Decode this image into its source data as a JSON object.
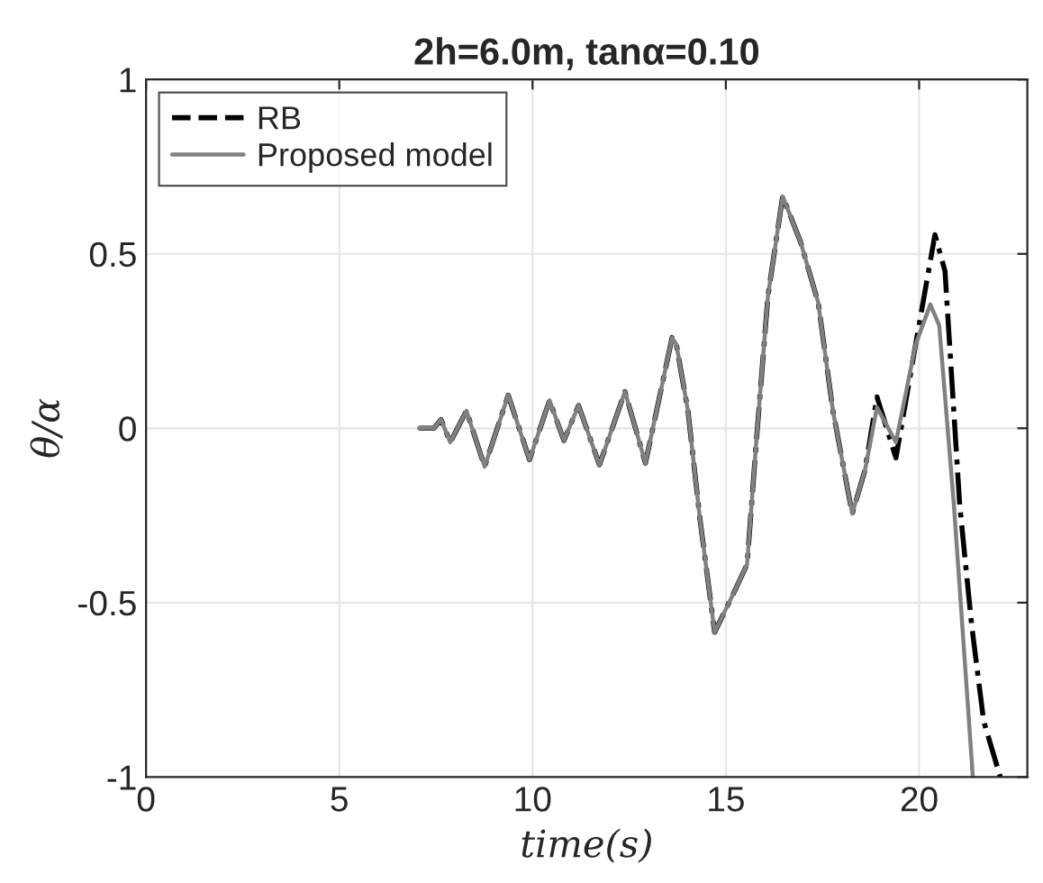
{
  "chart_data": {
    "type": "line",
    "title": "2h=6.0m, tanα=0.10",
    "xlabel": "time(s)",
    "ylabel": "θ/α",
    "xlim": [
      0,
      22.8
    ],
    "ylim": [
      -1,
      1
    ],
    "xticks": [
      0,
      5,
      10,
      15,
      20
    ],
    "yticks": [
      -1,
      -0.5,
      0,
      0.5,
      1
    ],
    "grid": true,
    "legend": "top left",
    "series": [
      {
        "name": "RB",
        "color": "#000000",
        "line_style": "dashed",
        "x": [
          7.06,
          7.45,
          7.63,
          7.87,
          8.29,
          8.76,
          9.37,
          9.92,
          10.44,
          10.81,
          11.19,
          11.73,
          12.39,
          12.92,
          13.61,
          13.72,
          14.02,
          14.33,
          14.71,
          15.17,
          15.55,
          15.78,
          16.09,
          16.47,
          16.93,
          17.39,
          17.77,
          18.27,
          18.6,
          18.91,
          19.4,
          19.91,
          20.41,
          20.67,
          21.05,
          21.36,
          21.67,
          22.1
        ],
        "values": [
          0,
          0,
          0.025,
          -0.04,
          0.05,
          -0.11,
          0.095,
          -0.09,
          0.08,
          -0.035,
          0.065,
          -0.105,
          0.105,
          -0.1,
          0.26,
          0.24,
          0.05,
          -0.26,
          -0.585,
          -0.48,
          -0.39,
          -0.05,
          0.38,
          0.665,
          0.535,
          0.36,
          0.05,
          -0.245,
          -0.12,
          0.09,
          -0.085,
          0.24,
          0.555,
          0.45,
          -0.22,
          -0.565,
          -0.84,
          -1
        ]
      },
      {
        "name": "Proposed model",
        "color": "#808080",
        "line_style": "solid",
        "x": [
          7.06,
          7.45,
          7.63,
          7.87,
          8.29,
          8.76,
          9.37,
          9.92,
          10.44,
          10.81,
          11.19,
          11.73,
          12.39,
          12.92,
          13.61,
          13.72,
          14.02,
          14.33,
          14.71,
          15.17,
          15.55,
          15.78,
          16.09,
          16.47,
          16.93,
          17.39,
          17.77,
          18.27,
          18.6,
          18.91,
          19.4,
          19.91,
          20.29,
          20.52,
          20.9,
          21.39
        ],
        "values": [
          0,
          0,
          0.025,
          -0.04,
          0.05,
          -0.11,
          0.095,
          -0.09,
          0.08,
          -0.035,
          0.065,
          -0.105,
          0.105,
          -0.1,
          0.26,
          0.24,
          0.05,
          -0.26,
          -0.585,
          -0.48,
          -0.39,
          -0.05,
          0.38,
          0.665,
          0.535,
          0.36,
          0.05,
          -0.245,
          -0.12,
          0.06,
          -0.04,
          0.24,
          0.355,
          0.295,
          -0.22,
          -1
        ]
      }
    ]
  }
}
